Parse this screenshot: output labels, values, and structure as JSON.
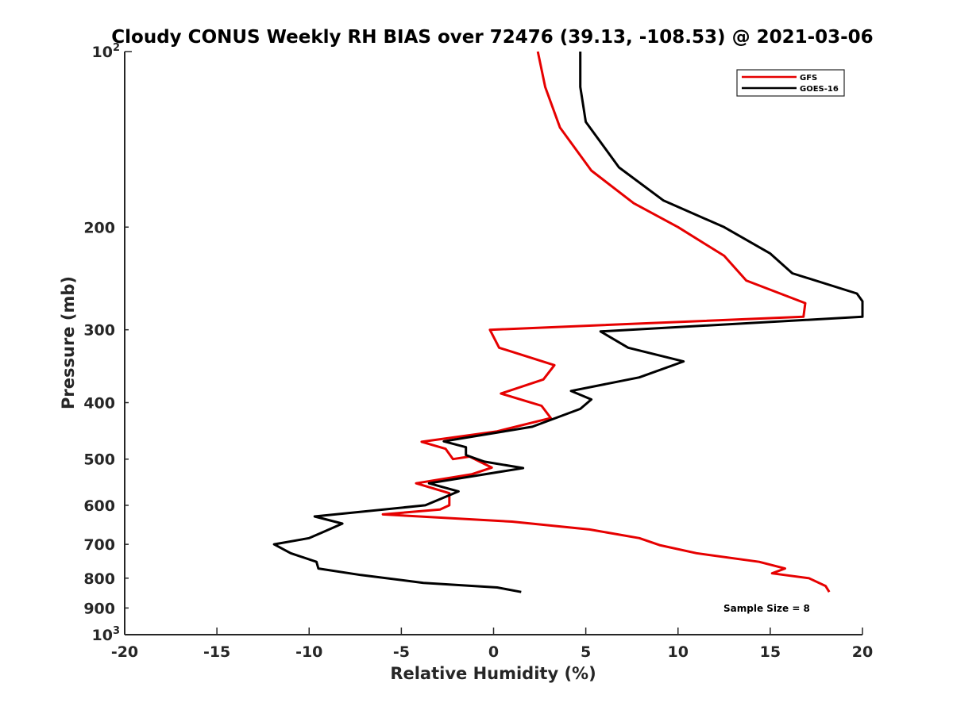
{
  "chart_data": {
    "type": "line",
    "title": "Cloudy CONUS Weekly RH BIAS over 72476 (39.13, -108.53) @ 2021-03-06",
    "xlabel": "Relative Humidity (%)",
    "ylabel": "Pressure (mb)",
    "xlim": [
      -20,
      20
    ],
    "ylim": [
      1000,
      100
    ],
    "y_scale": "log",
    "y_reversed": true,
    "grid": false,
    "legend_position": "top-right",
    "x_ticks": [
      -20,
      -15,
      -10,
      -5,
      0,
      5,
      10,
      15,
      20
    ],
    "x_tick_labels": [
      "-20",
      "-15",
      "-10",
      "-5",
      "0",
      "5",
      "10",
      "15",
      "20"
    ],
    "y_ticks": [
      100,
      200,
      300,
      400,
      500,
      600,
      700,
      800,
      900,
      1000
    ],
    "y_tick_labels": [
      {
        "base": "10",
        "exp": "2"
      },
      {
        "base": "200"
      },
      {
        "base": "300"
      },
      {
        "base": "400"
      },
      {
        "base": "500"
      },
      {
        "base": "600"
      },
      {
        "base": "700"
      },
      {
        "base": "800"
      },
      {
        "base": "900"
      },
      {
        "base": "10",
        "exp": "3"
      }
    ],
    "annotation": "Sample Size = 8",
    "series": [
      {
        "name": "GFS",
        "color": "#e60000",
        "points": [
          [
            2.4,
            100
          ],
          [
            2.8,
            115
          ],
          [
            3.6,
            135
          ],
          [
            5.3,
            160
          ],
          [
            7.6,
            182
          ],
          [
            10.0,
            200
          ],
          [
            12.5,
            224
          ],
          [
            13.7,
            247
          ],
          [
            16.9,
            270
          ],
          [
            16.8,
            285
          ],
          [
            -0.2,
            300
          ],
          [
            0.3,
            322
          ],
          [
            3.3,
            345
          ],
          [
            2.7,
            365
          ],
          [
            0.4,
            386
          ],
          [
            2.6,
            405
          ],
          [
            3.1,
            425
          ],
          [
            0.2,
            448
          ],
          [
            -3.9,
            467
          ],
          [
            -2.6,
            480
          ],
          [
            -2.2,
            500
          ],
          [
            -1.3,
            495
          ],
          [
            -0.1,
            517
          ],
          [
            -1.2,
            531
          ],
          [
            -4.2,
            550
          ],
          [
            -2.4,
            572
          ],
          [
            -2.4,
            600
          ],
          [
            -2.9,
            610
          ],
          [
            -6.0,
            622
          ],
          [
            1.0,
            640
          ],
          [
            5.2,
            660
          ],
          [
            7.9,
            683
          ],
          [
            9.0,
            702
          ],
          [
            11.0,
            725
          ],
          [
            14.4,
            750
          ],
          [
            15.8,
            770
          ],
          [
            15.1,
            785
          ],
          [
            17.1,
            800
          ],
          [
            18.0,
            825
          ],
          [
            18.2,
            845
          ]
        ]
      },
      {
        "name": "GOES-16",
        "color": "#000000",
        "points": [
          [
            4.7,
            100
          ],
          [
            4.7,
            115
          ],
          [
            5.0,
            132
          ],
          [
            6.8,
            158
          ],
          [
            9.2,
            180
          ],
          [
            12.5,
            200
          ],
          [
            15.0,
            222
          ],
          [
            16.2,
            240
          ],
          [
            19.7,
            260
          ],
          [
            20.0,
            268
          ],
          [
            20.0,
            285
          ],
          [
            5.8,
            302
          ],
          [
            7.3,
            322
          ],
          [
            10.3,
            340
          ],
          [
            7.9,
            362
          ],
          [
            4.2,
            382
          ],
          [
            5.3,
            395
          ],
          [
            4.7,
            410
          ],
          [
            2.1,
            440
          ],
          [
            -2.7,
            466
          ],
          [
            -1.5,
            477
          ],
          [
            -1.5,
            492
          ],
          [
            -0.5,
            505
          ],
          [
            1.6,
            518
          ],
          [
            -3.5,
            550
          ],
          [
            -1.9,
            568
          ],
          [
            -3.7,
            600
          ],
          [
            -9.7,
            627
          ],
          [
            -8.2,
            645
          ],
          [
            -9.3,
            668
          ],
          [
            -10.0,
            683
          ],
          [
            -11.9,
            700
          ],
          [
            -11.0,
            725
          ],
          [
            -9.6,
            750
          ],
          [
            -9.5,
            770
          ],
          [
            -7.2,
            790
          ],
          [
            -3.8,
            815
          ],
          [
            0.2,
            830
          ],
          [
            1.5,
            845
          ]
        ]
      }
    ]
  }
}
